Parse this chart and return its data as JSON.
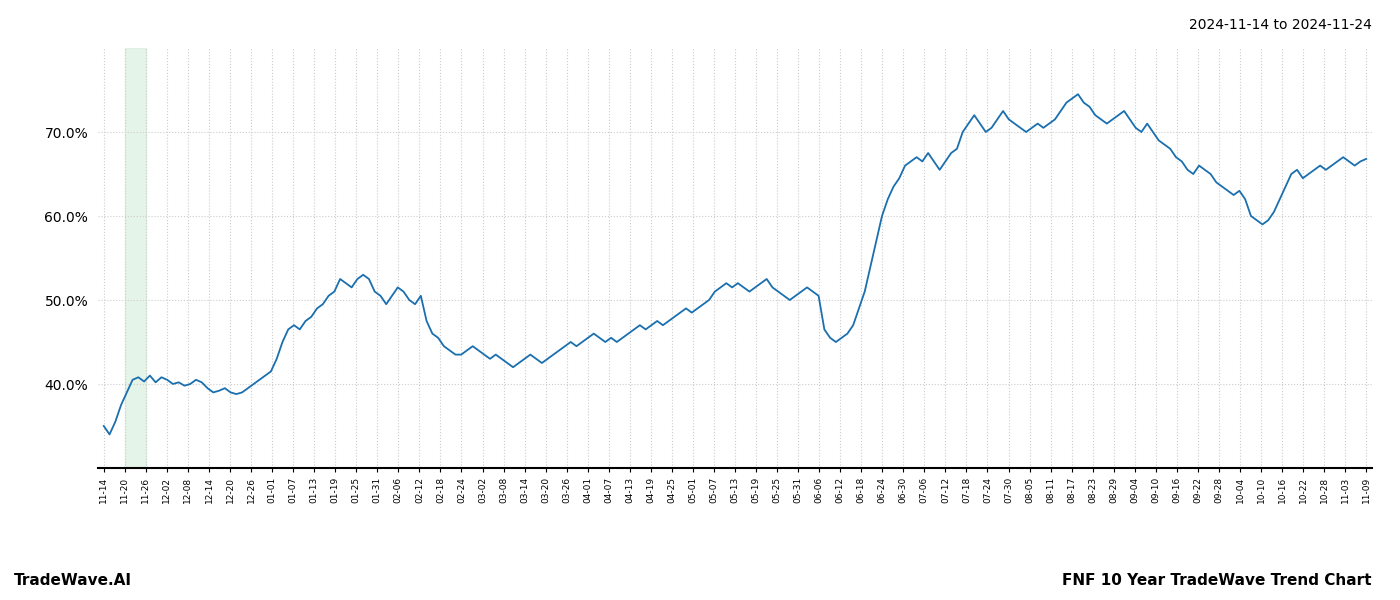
{
  "title_right": "2024-11-14 to 2024-11-24",
  "footer_left": "TradeWave.AI",
  "footer_right": "FNF 10 Year TradeWave Trend Chart",
  "line_color": "#1a6faf",
  "line_width": 1.3,
  "shade_color": "#d4edda",
  "shade_alpha": 0.6,
  "background_color": "#ffffff",
  "grid_color": "#cccccc",
  "grid_style": ":",
  "ylim": [
    30,
    80
  ],
  "yticks": [
    40.0,
    50.0,
    60.0,
    70.0
  ],
  "xtick_labels": [
    "11-14",
    "11-20",
    "11-26",
    "12-02",
    "12-08",
    "12-14",
    "12-20",
    "12-26",
    "01-01",
    "01-07",
    "01-13",
    "01-19",
    "01-25",
    "01-31",
    "02-06",
    "02-12",
    "02-18",
    "02-24",
    "03-02",
    "03-08",
    "03-14",
    "03-20",
    "03-26",
    "04-01",
    "04-07",
    "04-13",
    "04-19",
    "04-25",
    "05-01",
    "05-07",
    "05-13",
    "05-19",
    "05-25",
    "05-31",
    "06-06",
    "06-12",
    "06-18",
    "06-24",
    "06-30",
    "07-06",
    "07-12",
    "07-18",
    "07-24",
    "07-30",
    "08-05",
    "08-11",
    "08-17",
    "08-23",
    "08-29",
    "09-04",
    "09-10",
    "09-16",
    "09-22",
    "09-28",
    "10-04",
    "10-10",
    "10-16",
    "10-22",
    "10-28",
    "11-03",
    "11-09"
  ],
  "shade_xstart": 1,
  "shade_xend": 2,
  "values": [
    35.0,
    34.0,
    35.5,
    37.5,
    39.0,
    40.5,
    40.8,
    40.3,
    41.0,
    40.2,
    40.8,
    40.5,
    40.0,
    40.2,
    39.8,
    40.0,
    40.5,
    40.2,
    39.5,
    39.0,
    39.2,
    39.5,
    39.0,
    38.8,
    39.0,
    39.5,
    40.0,
    40.5,
    41.0,
    41.5,
    43.0,
    45.0,
    46.5,
    47.0,
    46.5,
    47.5,
    48.0,
    49.0,
    49.5,
    50.5,
    51.0,
    52.5,
    52.0,
    51.5,
    52.5,
    53.0,
    52.5,
    51.0,
    50.5,
    49.5,
    50.5,
    51.5,
    51.0,
    50.0,
    49.5,
    50.5,
    47.5,
    46.0,
    45.5,
    44.5,
    44.0,
    43.5,
    43.5,
    44.0,
    44.5,
    44.0,
    43.5,
    43.0,
    43.5,
    43.0,
    42.5,
    42.0,
    42.5,
    43.0,
    43.5,
    43.0,
    42.5,
    43.0,
    43.5,
    44.0,
    44.5,
    45.0,
    44.5,
    45.0,
    45.5,
    46.0,
    45.5,
    45.0,
    45.5,
    45.0,
    45.5,
    46.0,
    46.5,
    47.0,
    46.5,
    47.0,
    47.5,
    47.0,
    47.5,
    48.0,
    48.5,
    49.0,
    48.5,
    49.0,
    49.5,
    50.0,
    51.0,
    51.5,
    52.0,
    51.5,
    52.0,
    51.5,
    51.0,
    51.5,
    52.0,
    52.5,
    51.5,
    51.0,
    50.5,
    50.0,
    50.5,
    51.0,
    51.5,
    51.0,
    50.5,
    46.5,
    45.5,
    45.0,
    45.5,
    46.0,
    47.0,
    49.0,
    51.0,
    54.0,
    57.0,
    60.0,
    62.0,
    63.5,
    64.5,
    66.0,
    66.5,
    67.0,
    66.5,
    67.5,
    66.5,
    65.5,
    66.5,
    67.5,
    68.0,
    70.0,
    71.0,
    72.0,
    71.0,
    70.0,
    70.5,
    71.5,
    72.5,
    71.5,
    71.0,
    70.5,
    70.0,
    70.5,
    71.0,
    70.5,
    71.0,
    71.5,
    72.5,
    73.5,
    74.0,
    74.5,
    73.5,
    73.0,
    72.0,
    71.5,
    71.0,
    71.5,
    72.0,
    72.5,
    71.5,
    70.5,
    70.0,
    71.0,
    70.0,
    69.0,
    68.5,
    68.0,
    67.0,
    66.5,
    65.5,
    65.0,
    66.0,
    65.5,
    65.0,
    64.0,
    63.5,
    63.0,
    62.5,
    63.0,
    62.0,
    60.0,
    59.5,
    59.0,
    59.5,
    60.5,
    62.0,
    63.5,
    65.0,
    65.5,
    64.5,
    65.0,
    65.5,
    66.0,
    65.5,
    66.0,
    66.5,
    67.0,
    66.5,
    66.0,
    66.5,
    66.8
  ]
}
